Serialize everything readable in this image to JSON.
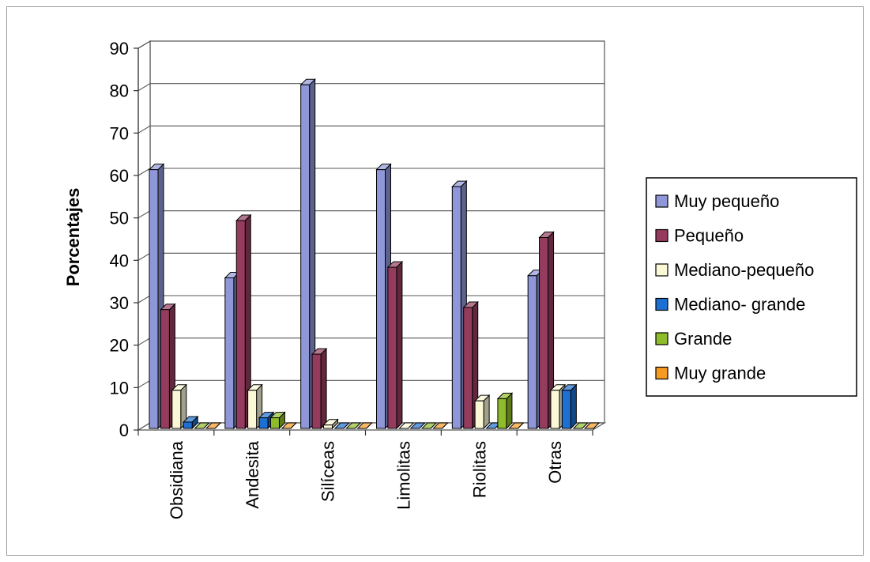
{
  "chart_data": {
    "type": "bar",
    "title": "",
    "xlabel": "",
    "ylabel": "Porcentajes",
    "ylim": [
      0,
      90
    ],
    "yticks": [
      0,
      10,
      20,
      30,
      40,
      50,
      60,
      70,
      80,
      90
    ],
    "grid": true,
    "legend_position": "right",
    "categories": [
      "Obsidiana",
      "Andesita",
      "Silíceas",
      "Limolitas",
      "Riolitas",
      "Otras"
    ],
    "series": [
      {
        "name": "Muy pequeño",
        "color": "#8f97d9",
        "values": [
          61,
          35.5,
          81,
          61,
          57,
          36
        ]
      },
      {
        "name": "Pequeño",
        "color": "#953c5e",
        "values": [
          28,
          49,
          17.5,
          38,
          28.5,
          45
        ]
      },
      {
        "name": "Mediano-pequeño",
        "color": "#fbf8d6",
        "values": [
          9,
          9,
          0.8,
          0,
          6.5,
          9
        ]
      },
      {
        "name": "Mediano- grande",
        "color": "#1d6fd1",
        "values": [
          1.5,
          2.5,
          0,
          0,
          0,
          9
        ]
      },
      {
        "name": "Grande",
        "color": "#8fbc2a",
        "values": [
          0,
          2.5,
          0,
          0,
          7,
          0
        ]
      },
      {
        "name": "Muy grande",
        "color": "#f59a23",
        "values": [
          0,
          0,
          0,
          0,
          0,
          0
        ]
      }
    ]
  }
}
